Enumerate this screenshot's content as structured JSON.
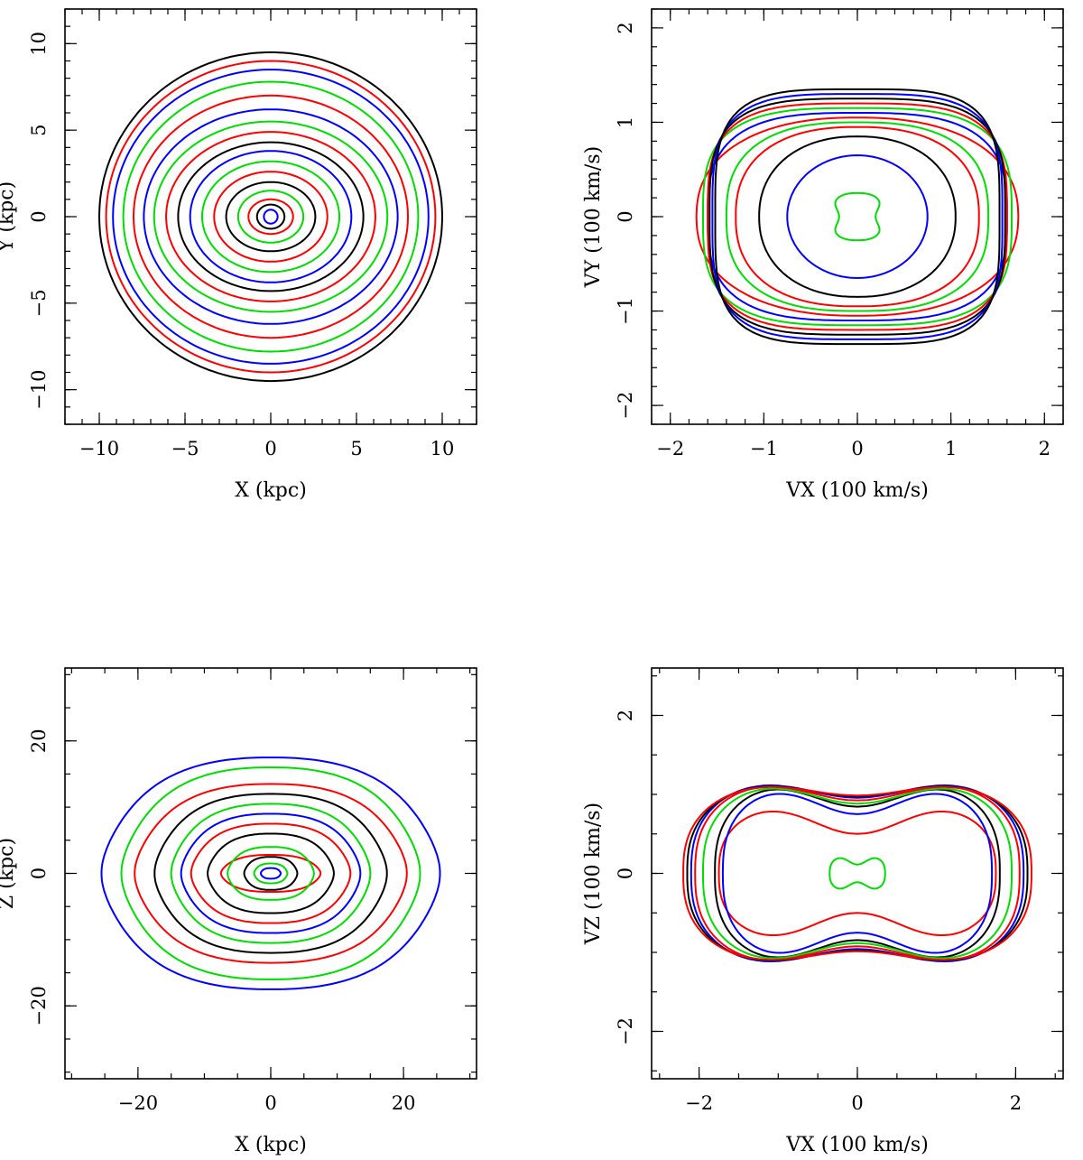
{
  "colors": {
    "black": "#000000",
    "red": "#ff0000",
    "green": "#00dd00",
    "blue": "#0000ff"
  },
  "chart_data": [
    {
      "type": "line",
      "panel": "top-left",
      "xlabel": "X (kpc)",
      "ylabel": "Y (kpc)",
      "xlim": [
        -12,
        12
      ],
      "ylim": [
        -12,
        12
      ],
      "xticks": [
        -10,
        -5,
        0,
        5,
        10
      ],
      "yticks": [
        -10,
        -5,
        0,
        5,
        10
      ],
      "xtick_labels": [
        "−10",
        "−5",
        "0",
        "5",
        "10"
      ],
      "ytick_labels": [
        "−10",
        "−5",
        "0",
        "5",
        "10"
      ],
      "minor_step": 1,
      "grid": false,
      "series": [
        {
          "color": "blue",
          "shape": "ellipse",
          "a": 0.4,
          "b": 0.4
        },
        {
          "color": "black",
          "shape": "ellipse",
          "a": 0.8,
          "b": 0.7
        },
        {
          "color": "red",
          "shape": "ellipse",
          "a": 1.3,
          "b": 1.0
        },
        {
          "color": "green",
          "shape": "ellipse",
          "a": 1.9,
          "b": 1.5
        },
        {
          "color": "black",
          "shape": "ellipse",
          "a": 2.6,
          "b": 2.0
        },
        {
          "color": "red",
          "shape": "ellipse",
          "a": 3.3,
          "b": 2.6
        },
        {
          "color": "green",
          "shape": "ellipse",
          "a": 4.0,
          "b": 3.2
        },
        {
          "color": "blue",
          "shape": "ellipse",
          "a": 4.7,
          "b": 3.8
        },
        {
          "color": "black",
          "shape": "ellipse",
          "a": 5.4,
          "b": 4.3
        },
        {
          "color": "red",
          "shape": "ellipse",
          "a": 6.1,
          "b": 4.9
        },
        {
          "color": "green",
          "shape": "ellipse",
          "a": 6.8,
          "b": 5.5
        },
        {
          "color": "blue",
          "shape": "ellipse",
          "a": 7.4,
          "b": 6.2
        },
        {
          "color": "red",
          "shape": "ellipse",
          "a": 8.0,
          "b": 7.0
        },
        {
          "color": "green",
          "shape": "ellipse",
          "a": 8.6,
          "b": 7.8
        },
        {
          "color": "blue",
          "shape": "ellipse",
          "a": 9.2,
          "b": 8.5
        },
        {
          "color": "red",
          "shape": "ellipse",
          "a": 9.6,
          "b": 9.0
        },
        {
          "color": "black",
          "shape": "ellipse",
          "a": 10.0,
          "b": 9.5
        }
      ]
    },
    {
      "type": "line",
      "panel": "top-right",
      "xlabel": "VX (100 km/s)",
      "ylabel": "VY (100 km/s)",
      "xlim": [
        -2.2,
        2.2
      ],
      "ylim": [
        -2.2,
        2.2
      ],
      "xticks": [
        -2,
        -1,
        0,
        1,
        2
      ],
      "yticks": [
        -2,
        -1,
        0,
        1,
        2
      ],
      "xtick_labels": [
        "−2",
        "−1",
        "0",
        "1",
        "2"
      ],
      "ytick_labels": [
        "−2",
        "−1",
        "0",
        "1",
        "2"
      ],
      "minor_step": 0.2,
      "grid": false,
      "series": [
        {
          "color": "green",
          "shape": "bowtie",
          "a": 0.3,
          "b": 0.25,
          "n": 2.5,
          "pinch": 0.65
        },
        {
          "color": "blue",
          "shape": "ellipse",
          "a": 0.75,
          "b": 0.65,
          "n": 2
        },
        {
          "color": "black",
          "shape": "ellipse",
          "a": 1.05,
          "b": 0.85,
          "n": 2.2
        },
        {
          "color": "red",
          "shape": "ellipse",
          "a": 1.3,
          "b": 0.95,
          "n": 2.4
        },
        {
          "color": "green",
          "shape": "ellipse",
          "a": 1.4,
          "b": 1.0,
          "n": 2.6
        },
        {
          "color": "red",
          "shape": "ellipse",
          "a": 1.72,
          "b": 1.05,
          "n": 2.3
        },
        {
          "color": "blue",
          "shape": "ellipse",
          "a": 1.6,
          "b": 1.1,
          "n": 3
        },
        {
          "color": "green",
          "shape": "ellipse",
          "a": 1.65,
          "b": 1.15,
          "n": 3.2
        },
        {
          "color": "red",
          "shape": "ellipse",
          "a": 1.6,
          "b": 1.2,
          "n": 3.4
        },
        {
          "color": "black",
          "shape": "ellipse",
          "a": 1.58,
          "b": 1.25,
          "n": 3.5
        },
        {
          "color": "blue",
          "shape": "ellipse",
          "a": 1.55,
          "b": 1.3,
          "n": 3.6
        },
        {
          "color": "black",
          "shape": "ellipse",
          "a": 1.52,
          "b": 1.35,
          "n": 3.8
        }
      ]
    },
    {
      "type": "line",
      "panel": "bottom-left",
      "xlabel": "X (kpc)",
      "ylabel": "Z (kpc)",
      "xlim": [
        -31,
        31
      ],
      "ylim": [
        -31,
        31
      ],
      "xticks": [
        -20,
        0,
        20
      ],
      "yticks": [
        -20,
        0,
        20
      ],
      "xtick_labels": [
        "−20",
        "0",
        "20"
      ],
      "ytick_labels": [
        "−20",
        "0",
        "20"
      ],
      "minor_step": 5,
      "grid": false,
      "series": [
        {
          "color": "blue",
          "shape": "lens",
          "a": 1.5,
          "b": 0.8
        },
        {
          "color": "green",
          "shape": "lens",
          "a": 2.5,
          "b": 1.5
        },
        {
          "color": "black",
          "shape": "lens",
          "a": 4.0,
          "b": 2.5
        },
        {
          "color": "red",
          "shape": "lens",
          "a": 7.5,
          "b": 2.8
        },
        {
          "color": "green",
          "shape": "lens",
          "a": 6.5,
          "b": 4.0
        },
        {
          "color": "black",
          "shape": "lens",
          "a": 9.5,
          "b": 6.0
        },
        {
          "color": "red",
          "shape": "lens",
          "a": 12.0,
          "b": 7.5
        },
        {
          "color": "blue",
          "shape": "lens",
          "a": 13.5,
          "b": 9.0
        },
        {
          "color": "green",
          "shape": "lens",
          "a": 15.0,
          "b": 10.5
        },
        {
          "color": "black",
          "shape": "lens",
          "a": 17.5,
          "b": 12.0
        },
        {
          "color": "red",
          "shape": "lens",
          "a": 20.5,
          "b": 13.5
        },
        {
          "color": "green",
          "shape": "lens",
          "a": 22.5,
          "b": 16.0
        },
        {
          "color": "blue",
          "shape": "lens",
          "a": 25.5,
          "b": 17.5
        }
      ]
    },
    {
      "type": "line",
      "panel": "bottom-right",
      "xlabel": "VX (100 km/s)",
      "ylabel": "VZ (100 km/s)",
      "xlim": [
        -2.6,
        2.6
      ],
      "ylim": [
        -2.6,
        2.6
      ],
      "xticks": [
        -2,
        0,
        2
      ],
      "yticks": [
        -2,
        0,
        2
      ],
      "xtick_labels": [
        "−2",
        "0",
        "2"
      ],
      "ytick_labels": [
        "−2",
        "0",
        "2"
      ],
      "minor_step": 0.5,
      "grid": false,
      "series": [
        {
          "color": "green",
          "shape": "peanut",
          "a": 0.35,
          "b": 0.25,
          "n": 2.6,
          "pinch": 0.45
        },
        {
          "color": "red",
          "shape": "peanut",
          "a": 1.75,
          "b": 1.0,
          "n": 2.6,
          "pinch": 0.5
        },
        {
          "color": "blue",
          "shape": "peanut",
          "a": 1.7,
          "b": 1.25,
          "n": 2.6,
          "pinch": 0.6
        },
        {
          "color": "black",
          "shape": "peanut",
          "a": 1.8,
          "b": 1.3,
          "n": 2.6,
          "pinch": 0.65
        },
        {
          "color": "green",
          "shape": "peanut",
          "a": 1.95,
          "b": 1.3,
          "n": 2.6,
          "pinch": 0.68
        },
        {
          "color": "red",
          "shape": "peanut",
          "a": 2.05,
          "b": 1.32,
          "n": 2.6,
          "pinch": 0.7
        },
        {
          "color": "blue",
          "shape": "peanut",
          "a": 2.1,
          "b": 1.33,
          "n": 2.6,
          "pinch": 0.72
        },
        {
          "color": "black",
          "shape": "peanut",
          "a": 2.15,
          "b": 1.3,
          "n": 2.6,
          "pinch": 0.75
        },
        {
          "color": "red",
          "shape": "peanut",
          "a": 2.2,
          "b": 1.28,
          "n": 2.6,
          "pinch": 0.77
        }
      ]
    }
  ]
}
